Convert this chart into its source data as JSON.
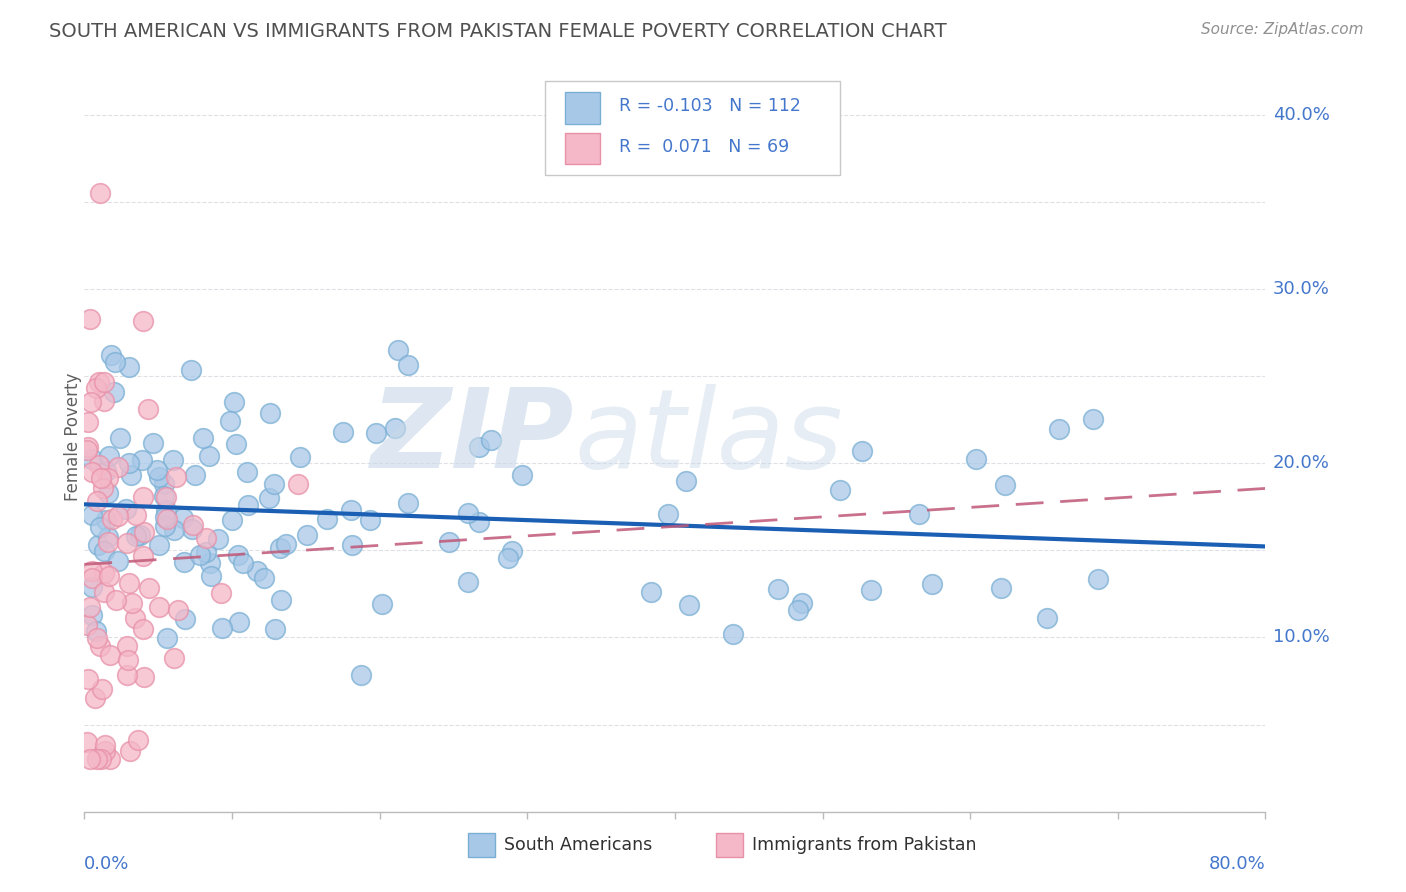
{
  "title": "SOUTH AMERICAN VS IMMIGRANTS FROM PAKISTAN FEMALE POVERTY CORRELATION CHART",
  "source": "Source: ZipAtlas.com",
  "ylabel": "Female Poverty",
  "yticks": [
    0.1,
    0.2,
    0.3,
    0.4
  ],
  "ytick_labels": [
    "10.0%",
    "20.0%",
    "30.0%",
    "40.0%"
  ],
  "xlim": [
    0.0,
    0.8
  ],
  "ylim": [
    0.0,
    0.43
  ],
  "blue_R": -0.103,
  "blue_N": 112,
  "pink_R": 0.071,
  "pink_N": 69,
  "blue_color": "#a8c8e8",
  "pink_color": "#f4b8c8",
  "blue_edge_color": "#7aafd4",
  "pink_edge_color": "#e890a8",
  "blue_line_color": "#1a5fb4",
  "pink_line_color": "#c0404080",
  "legend_blue_fill": "#a8c8e8",
  "legend_pink_fill": "#f4b8c8",
  "watermark_zip_color": "#c8d8e8",
  "watermark_atlas_color": "#c8d8e8",
  "background_color": "#ffffff",
  "grid_color": "#d8d8e0",
  "title_color": "#505050",
  "axis_label_color": "#4477cc",
  "bottom_label_color": "#303030"
}
